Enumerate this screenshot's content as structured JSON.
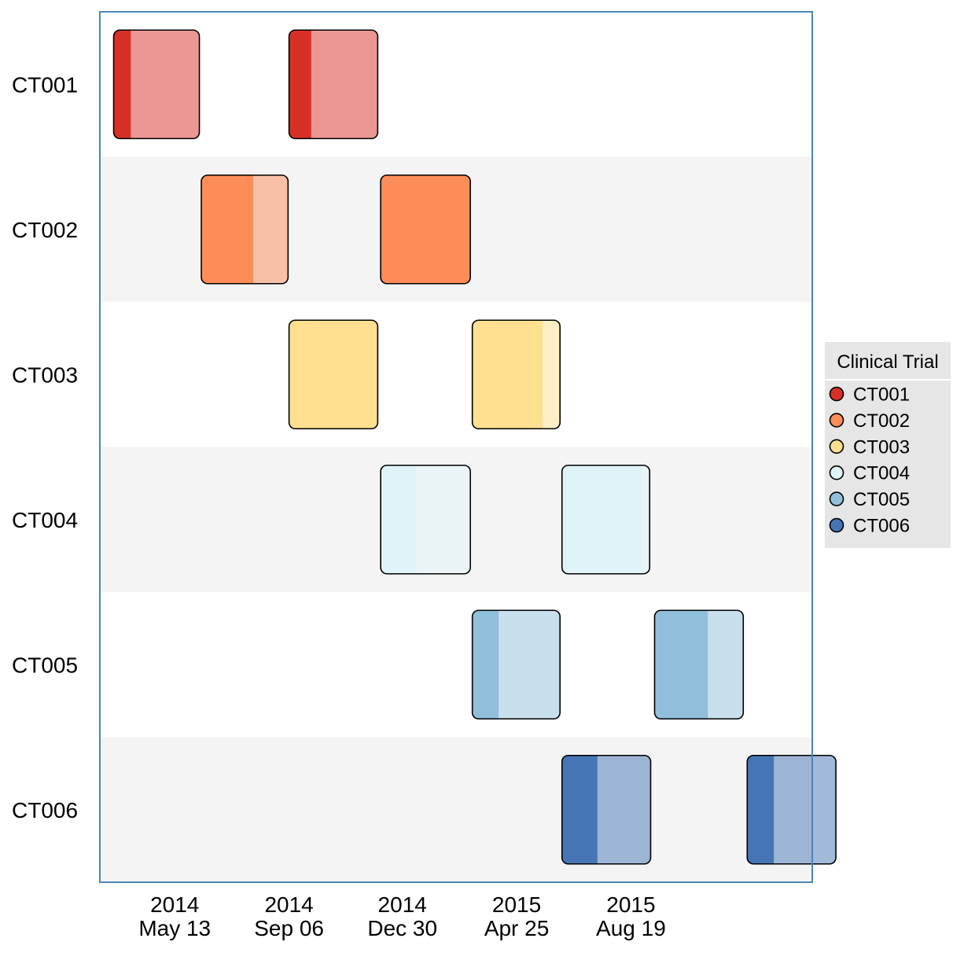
{
  "chart_data": {
    "type": "gantt",
    "legend": {
      "title": "Clinical Trial",
      "placement": "right",
      "entries": [
        {
          "name": "CT001",
          "color": "#d73027"
        },
        {
          "name": "CT002",
          "color": "#fc8d59"
        },
        {
          "name": "CT003",
          "color": "#fee090"
        },
        {
          "name": "CT004",
          "color": "#e0f3f8"
        },
        {
          "name": "CT005",
          "color": "#91bfdb"
        },
        {
          "name": "CT006",
          "color": "#4575b4"
        }
      ]
    },
    "y_categories": [
      "CT001",
      "CT002",
      "CT003",
      "CT004",
      "CT005",
      "CT006"
    ],
    "x_ticks": [
      {
        "date": "2014-05-13",
        "line1": "2014",
        "line2": "May 13"
      },
      {
        "date": "2014-09-06",
        "line1": "2014",
        "line2": "Sep 06"
      },
      {
        "date": "2014-12-30",
        "line1": "2014",
        "line2": "Dec 30"
      },
      {
        "date": "2015-04-25",
        "line1": "2015",
        "line2": "Apr 25"
      },
      {
        "date": "2015-08-19",
        "line1": "2015",
        "line2": "Aug 19"
      }
    ],
    "xlim": [
      "2014-02-26",
      "2016-02-19"
    ],
    "tasks": [
      {
        "trial": "CT001",
        "start": "2014-03-12",
        "end": "2014-06-07",
        "progress": 0.2
      },
      {
        "trial": "CT001",
        "start": "2014-09-06",
        "end": "2014-12-05",
        "progress": 0.25
      },
      {
        "trial": "CT002",
        "start": "2014-06-09",
        "end": "2014-09-05",
        "progress": 0.6
      },
      {
        "trial": "CT002",
        "start": "2014-12-08",
        "end": "2015-03-09",
        "progress": 1.0
      },
      {
        "trial": "CT003",
        "start": "2014-09-06",
        "end": "2014-12-05",
        "progress": 1.0
      },
      {
        "trial": "CT003",
        "start": "2015-03-11",
        "end": "2015-06-08",
        "progress": 0.8
      },
      {
        "trial": "CT004",
        "start": "2014-12-08",
        "end": "2015-03-09",
        "progress": 0.4
      },
      {
        "trial": "CT004",
        "start": "2015-06-10",
        "end": "2015-09-07",
        "progress": 0.92
      },
      {
        "trial": "CT005",
        "start": "2015-03-11",
        "end": "2015-06-08",
        "progress": 0.3
      },
      {
        "trial": "CT005",
        "start": "2015-09-12",
        "end": "2015-12-11",
        "progress": 0.6
      },
      {
        "trial": "CT006",
        "start": "2015-06-10",
        "end": "2015-09-08",
        "progress": 0.4
      },
      {
        "trial": "CT006",
        "start": "2015-12-15",
        "end": "2016-03-14",
        "progress": 0.3
      }
    ],
    "grid": false,
    "row_banding": [
      "#ffffff",
      "#f4f4f4"
    ]
  }
}
